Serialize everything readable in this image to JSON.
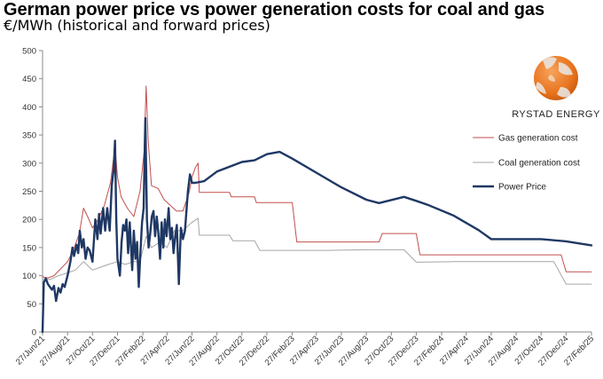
{
  "title": "German power price vs power generation costs for coal and gas",
  "subtitle": "€/MWh (historical and forward prices)",
  "brand": {
    "name": "RYSTAD ENERGY"
  },
  "colors": {
    "gas": "#c0504d",
    "coal": "#a6a6a6",
    "power": "#1f3864"
  },
  "chart_data": {
    "type": "line",
    "ylim": [
      0,
      500
    ],
    "yticks": [
      0,
      50,
      100,
      150,
      200,
      250,
      300,
      350,
      400,
      450,
      500
    ],
    "xlim": [
      "2021-06-27",
      "2025-02-27"
    ],
    "xtick_labels": [
      "27/Jun/21",
      "27/Aug/21",
      "27/Oct/21",
      "27/Dec/21",
      "27/Feb/22",
      "27/Apr/22",
      "27/Jun/22",
      "27/Aug/22",
      "27/Oct/22",
      "27/Dec/22",
      "27/Feb/23",
      "27/Apr/23",
      "27/Jun/23",
      "27/Aug/23",
      "27/Oct/23",
      "27/Dec/23",
      "27/Feb/24",
      "27/Apr/24",
      "27/Jun/24",
      "27/Aug/24",
      "27/Oct/24",
      "27/Dec/24",
      "27/Feb/25"
    ],
    "legend": {
      "position": "right"
    },
    "series": [
      {
        "name": "Gas generation cost",
        "color": "#c0504d",
        "points": [
          [
            "2021-06-27",
            98
          ],
          [
            "2021-07-10",
            96
          ],
          [
            "2021-07-25",
            100
          ],
          [
            "2021-08-10",
            112
          ],
          [
            "2021-08-27",
            125
          ],
          [
            "2021-09-10",
            145
          ],
          [
            "2021-09-25",
            175
          ],
          [
            "2021-10-05",
            220
          ],
          [
            "2021-10-15",
            205
          ],
          [
            "2021-10-27",
            185
          ],
          [
            "2021-11-10",
            200
          ],
          [
            "2021-11-25",
            225
          ],
          [
            "2021-12-10",
            265
          ],
          [
            "2021-12-21",
            330
          ],
          [
            "2021-12-27",
            275
          ],
          [
            "2022-01-05",
            240
          ],
          [
            "2022-01-20",
            220
          ],
          [
            "2022-02-05",
            205
          ],
          [
            "2022-02-20",
            250
          ],
          [
            "2022-03-02",
            320
          ],
          [
            "2022-03-07",
            437
          ],
          [
            "2022-03-12",
            340
          ],
          [
            "2022-03-20",
            260
          ],
          [
            "2022-04-05",
            255
          ],
          [
            "2022-04-20",
            235
          ],
          [
            "2022-05-05",
            225
          ],
          [
            "2022-05-20",
            215
          ],
          [
            "2022-06-05",
            215
          ],
          [
            "2022-06-20",
            248
          ],
          [
            "2022-06-27",
            275
          ],
          [
            "2022-07-05",
            292
          ],
          [
            "2022-07-12",
            300
          ],
          [
            "2022-07-15",
            248
          ],
          [
            "2022-08-27",
            248
          ],
          [
            "2022-09-27",
            248
          ],
          [
            "2022-10-01",
            240
          ],
          [
            "2022-11-27",
            240
          ],
          [
            "2022-12-01",
            230
          ],
          [
            "2023-02-27",
            230
          ],
          [
            "2023-03-10",
            160
          ],
          [
            "2023-05-27",
            160
          ],
          [
            "2023-08-27",
            160
          ],
          [
            "2023-09-27",
            160
          ],
          [
            "2023-10-05",
            175
          ],
          [
            "2023-12-27",
            175
          ],
          [
            "2024-01-05",
            137
          ],
          [
            "2024-04-27",
            137
          ],
          [
            "2024-07-27",
            137
          ],
          [
            "2024-11-27",
            137
          ],
          [
            "2024-12-15",
            137
          ],
          [
            "2024-12-27",
            107
          ],
          [
            "2025-02-27",
            107
          ]
        ]
      },
      {
        "name": "Coal generation cost",
        "color": "#a6a6a6",
        "points": [
          [
            "2021-06-27",
            95
          ],
          [
            "2021-07-15",
            93
          ],
          [
            "2021-08-05",
            100
          ],
          [
            "2021-08-27",
            105
          ],
          [
            "2021-09-15",
            110
          ],
          [
            "2021-10-05",
            125
          ],
          [
            "2021-10-27",
            110
          ],
          [
            "2021-11-15",
            115
          ],
          [
            "2021-12-05",
            120
          ],
          [
            "2021-12-27",
            125
          ],
          [
            "2022-01-15",
            120
          ],
          [
            "2022-02-05",
            125
          ],
          [
            "2022-02-20",
            125
          ],
          [
            "2022-03-07",
            170
          ],
          [
            "2022-03-20",
            150
          ],
          [
            "2022-04-10",
            160
          ],
          [
            "2022-04-27",
            150
          ],
          [
            "2022-05-15",
            180
          ],
          [
            "2022-06-05",
            180
          ],
          [
            "2022-06-27",
            195
          ],
          [
            "2022-07-12",
            202
          ],
          [
            "2022-07-15",
            172
          ],
          [
            "2022-08-27",
            172
          ],
          [
            "2022-09-27",
            172
          ],
          [
            "2022-10-05",
            162
          ],
          [
            "2022-11-27",
            162
          ],
          [
            "2022-12-10",
            145
          ],
          [
            "2023-02-27",
            145
          ],
          [
            "2023-05-27",
            145
          ],
          [
            "2023-08-27",
            146
          ],
          [
            "2023-11-27",
            146
          ],
          [
            "2023-12-27",
            124
          ],
          [
            "2024-03-27",
            125
          ],
          [
            "2024-07-27",
            125
          ],
          [
            "2024-11-27",
            125
          ],
          [
            "2024-12-27",
            85
          ],
          [
            "2025-02-27",
            85
          ]
        ]
      },
      {
        "name": "Power Price",
        "color": "#1f3864",
        "points": [
          [
            "2021-06-27",
            0
          ],
          [
            "2021-06-30",
            88
          ],
          [
            "2021-07-05",
            95
          ],
          [
            "2021-07-10",
            85
          ],
          [
            "2021-07-15",
            80
          ],
          [
            "2021-07-20",
            75
          ],
          [
            "2021-07-25",
            82
          ],
          [
            "2021-07-30",
            55
          ],
          [
            "2021-08-05",
            78
          ],
          [
            "2021-08-10",
            70
          ],
          [
            "2021-08-15",
            85
          ],
          [
            "2021-08-20",
            80
          ],
          [
            "2021-08-27",
            100
          ],
          [
            "2021-09-03",
            125
          ],
          [
            "2021-09-08",
            150
          ],
          [
            "2021-09-12",
            135
          ],
          [
            "2021-09-18",
            155
          ],
          [
            "2021-09-22",
            140
          ],
          [
            "2021-09-26",
            180
          ],
          [
            "2021-10-01",
            150
          ],
          [
            "2021-10-05",
            165
          ],
          [
            "2021-10-10",
            130
          ],
          [
            "2021-10-15",
            150
          ],
          [
            "2021-10-20",
            145
          ],
          [
            "2021-10-27",
            125
          ],
          [
            "2021-11-03",
            200
          ],
          [
            "2021-11-08",
            165
          ],
          [
            "2021-11-12",
            210
          ],
          [
            "2021-11-16",
            175
          ],
          [
            "2021-11-22",
            220
          ],
          [
            "2021-11-27",
            180
          ],
          [
            "2021-12-02",
            220
          ],
          [
            "2021-12-08",
            180
          ],
          [
            "2021-12-13",
            260
          ],
          [
            "2021-12-18",
            290
          ],
          [
            "2021-12-21",
            340
          ],
          [
            "2021-12-24",
            200
          ],
          [
            "2021-12-27",
            130
          ],
          [
            "2022-01-02",
            100
          ],
          [
            "2022-01-06",
            160
          ],
          [
            "2022-01-10",
            190
          ],
          [
            "2022-01-14",
            180
          ],
          [
            "2022-01-18",
            200
          ],
          [
            "2022-01-22",
            140
          ],
          [
            "2022-01-26",
            195
          ],
          [
            "2022-02-01",
            110
          ],
          [
            "2022-02-05",
            180
          ],
          [
            "2022-02-09",
            130
          ],
          [
            "2022-02-13",
            160
          ],
          [
            "2022-02-17",
            80
          ],
          [
            "2022-02-21",
            140
          ],
          [
            "2022-02-25",
            195
          ],
          [
            "2022-03-01",
            220
          ],
          [
            "2022-03-05",
            380
          ],
          [
            "2022-03-09",
            200
          ],
          [
            "2022-03-13",
            150
          ],
          [
            "2022-03-17",
            175
          ],
          [
            "2022-03-21",
            205
          ],
          [
            "2022-03-25",
            215
          ],
          [
            "2022-03-29",
            170
          ],
          [
            "2022-04-02",
            205
          ],
          [
            "2022-04-06",
            175
          ],
          [
            "2022-04-10",
            130
          ],
          [
            "2022-04-14",
            195
          ],
          [
            "2022-04-18",
            150
          ],
          [
            "2022-04-22",
            200
          ],
          [
            "2022-04-26",
            170
          ],
          [
            "2022-05-01",
            220
          ],
          [
            "2022-05-05",
            165
          ],
          [
            "2022-05-09",
            185
          ],
          [
            "2022-05-13",
            140
          ],
          [
            "2022-05-17",
            170
          ],
          [
            "2022-05-21",
            190
          ],
          [
            "2022-05-26",
            85
          ],
          [
            "2022-05-31",
            185
          ],
          [
            "2022-06-05",
            165
          ],
          [
            "2022-06-10",
            180
          ],
          [
            "2022-06-17",
            250
          ],
          [
            "2022-06-22",
            280
          ],
          [
            "2022-06-27",
            265
          ],
          [
            "2022-07-05",
            265
          ],
          [
            "2022-07-27",
            268
          ],
          [
            "2022-08-27",
            285
          ],
          [
            "2022-10-27",
            302
          ],
          [
            "2022-11-27",
            305
          ],
          [
            "2022-12-27",
            316
          ],
          [
            "2023-01-27",
            320
          ],
          [
            "2023-02-27",
            308
          ],
          [
            "2023-04-27",
            283
          ],
          [
            "2023-06-27",
            257
          ],
          [
            "2023-08-27",
            235
          ],
          [
            "2023-09-27",
            229
          ],
          [
            "2023-11-27",
            240
          ],
          [
            "2023-12-27",
            233
          ],
          [
            "2024-01-27",
            225
          ],
          [
            "2024-03-27",
            207
          ],
          [
            "2024-05-27",
            181
          ],
          [
            "2024-06-27",
            165
          ],
          [
            "2024-10-27",
            165
          ],
          [
            "2024-12-27",
            161
          ],
          [
            "2025-02-27",
            154
          ]
        ]
      }
    ]
  }
}
